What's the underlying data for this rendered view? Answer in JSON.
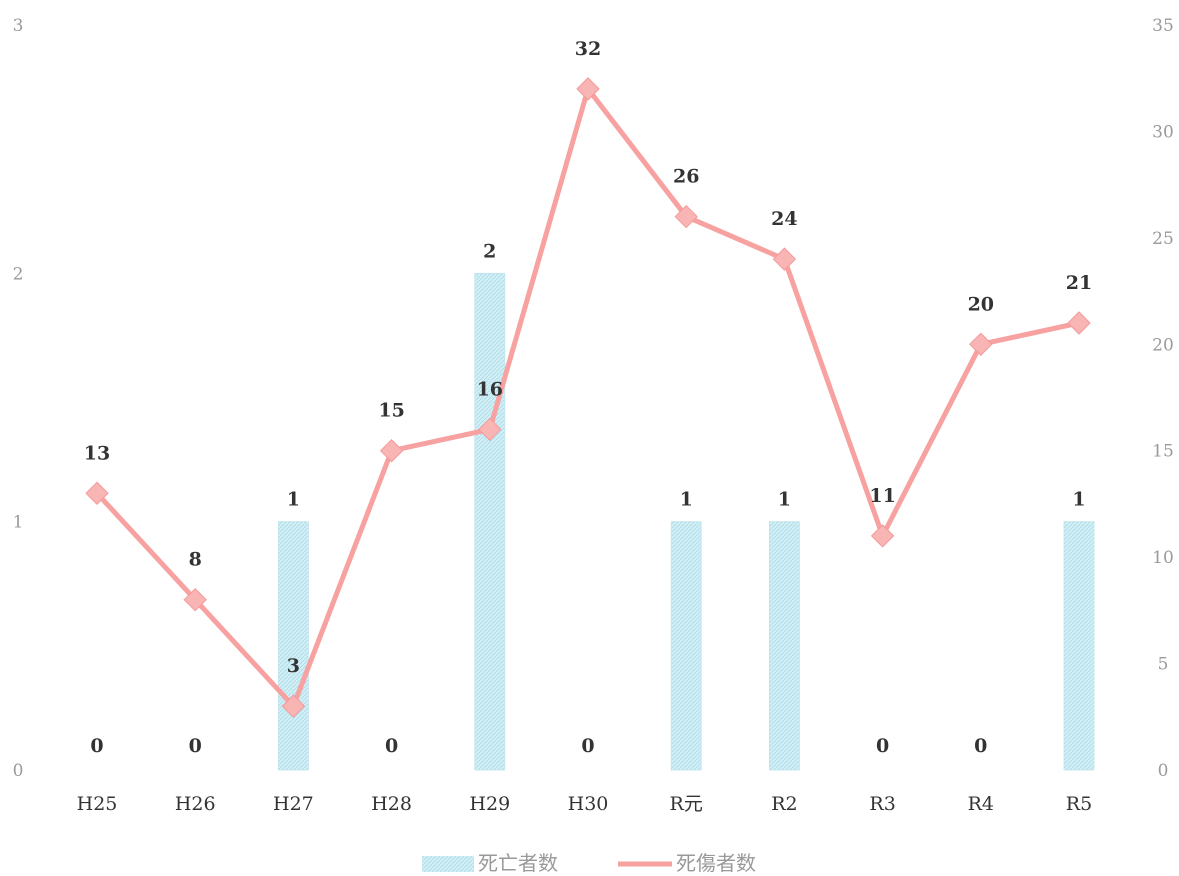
{
  "chart_data": {
    "type": "bar+line",
    "categories": [
      "H25",
      "H26",
      "H27",
      "H28",
      "H29",
      "H30",
      "R元",
      "R2",
      "R3",
      "R4",
      "R5"
    ],
    "series": [
      {
        "name": "死亡者数",
        "type": "bar",
        "axis": "left",
        "values": [
          0,
          0,
          1,
          0,
          2,
          0,
          1,
          1,
          0,
          0,
          1
        ],
        "color": "#cdeef5"
      },
      {
        "name": "死傷者数",
        "type": "line",
        "axis": "right",
        "values": [
          13,
          8,
          3,
          15,
          16,
          32,
          26,
          24,
          11,
          20,
          21
        ],
        "color": "#f7a1a1"
      }
    ],
    "y_left": {
      "range": [
        0,
        3
      ],
      "ticks": [
        "0",
        "1",
        "2",
        "3"
      ]
    },
    "y_right": {
      "range": [
        0,
        35
      ],
      "ticks": [
        "0",
        "5",
        "10",
        "15",
        "20",
        "25",
        "30",
        "35"
      ]
    },
    "grid": false,
    "legend_position": "bottom"
  }
}
